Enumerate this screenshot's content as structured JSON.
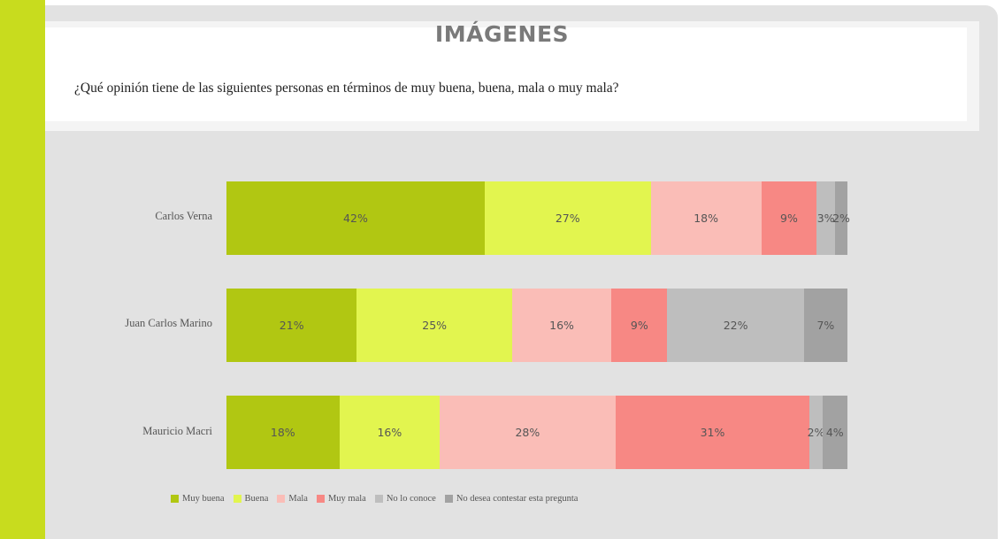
{
  "slide": {
    "title": "IMÁGENES",
    "question": "¿Qué opinión tiene de las siguientes personas en términos de muy buena, buena, mala o muy mala?"
  },
  "colors": {
    "accent_band": "#c8dc1e",
    "muy_buena": "#b1c712",
    "buena": "#e2f54f",
    "mala": "#fabdb7",
    "muy_mala": "#f78884",
    "no_lo_conoce": "#bebebe",
    "no_desea": "#a2a2a2"
  },
  "chart_data": {
    "type": "bar",
    "orientation": "horizontal",
    "stacked": true,
    "percent_stacked": true,
    "title": "IMÁGENES",
    "subtitle": "¿Qué opinión tiene de las siguientes personas en términos de muy buena, buena, mala o muy mala?",
    "xlabel": "",
    "ylabel": "",
    "grid": false,
    "legend_position": "bottom",
    "categories": [
      "Carlos Verna",
      "Juan Carlos Marino",
      "Mauricio Macri"
    ],
    "series": [
      {
        "name": "Muy buena",
        "color": "#b1c712",
        "values": [
          42,
          21,
          18
        ],
        "labels": [
          "42%",
          "21%",
          "18%"
        ]
      },
      {
        "name": "Buena",
        "color": "#e2f54f",
        "values": [
          27,
          25,
          16
        ],
        "labels": [
          "27%",
          "25%",
          "16%"
        ]
      },
      {
        "name": "Mala",
        "color": "#fabdb7",
        "values": [
          18,
          16,
          28
        ],
        "labels": [
          "18%",
          "16%",
          "28%"
        ]
      },
      {
        "name": "Muy mala",
        "color": "#f78884",
        "values": [
          9,
          9,
          31
        ],
        "labels": [
          "9%",
          "9%",
          "31%"
        ]
      },
      {
        "name": "No lo conoce",
        "color": "#bebebe",
        "values": [
          3,
          22,
          2
        ],
        "labels": [
          "3%",
          "22%",
          "2%"
        ]
      },
      {
        "name": "No desea contestar esta pregunta",
        "color": "#a2a2a2",
        "values": [
          2,
          7,
          4
        ],
        "labels": [
          "2%",
          "7%",
          "4%"
        ]
      }
    ]
  },
  "legend": [
    {
      "label": "Muy buena",
      "color": "#b1c712"
    },
    {
      "label": "Buena",
      "color": "#e2f54f"
    },
    {
      "label": "Mala",
      "color": "#fabdb7"
    },
    {
      "label": "Muy mala",
      "color": "#f78884"
    },
    {
      "label": "No lo conoce",
      "color": "#bebebe"
    },
    {
      "label": "No desea contestar esta pregunta",
      "color": "#a2a2a2"
    }
  ]
}
